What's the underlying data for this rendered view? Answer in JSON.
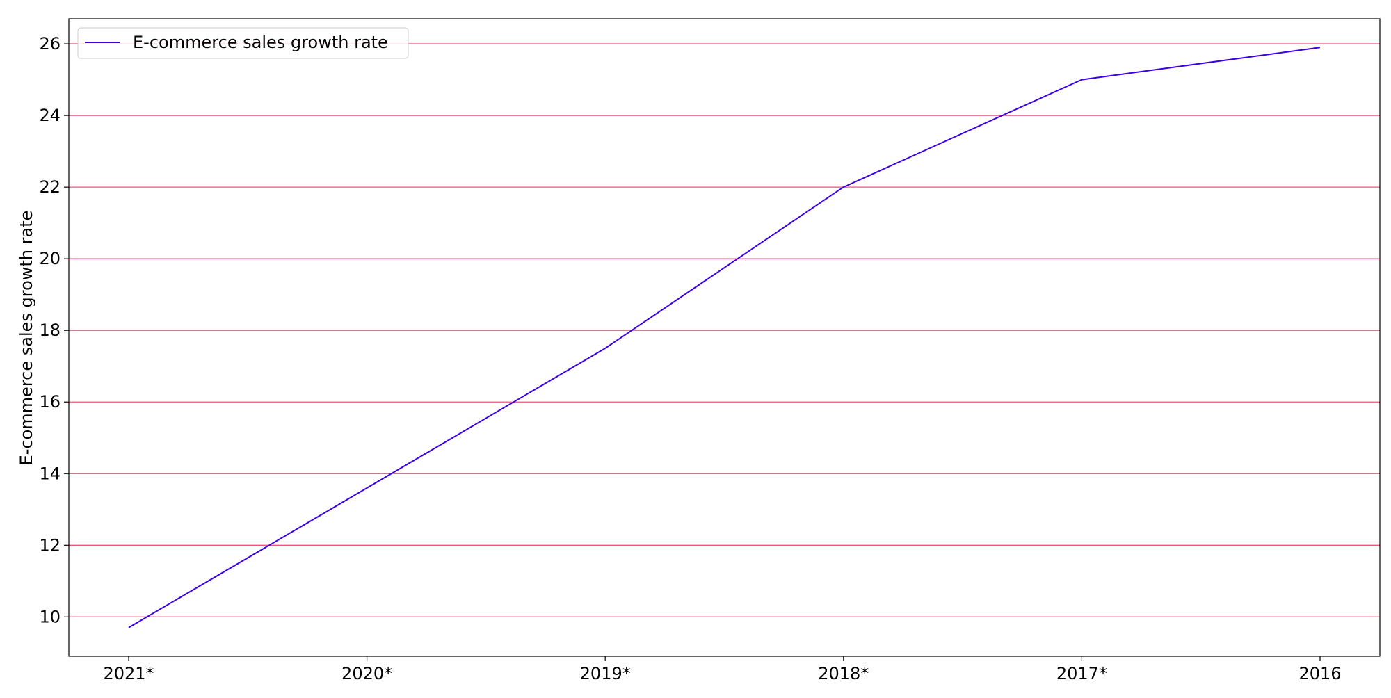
{
  "chart_data": {
    "type": "line",
    "categories": [
      "2021*",
      "2020*",
      "2019*",
      "2018*",
      "2017*",
      "2016"
    ],
    "series": [
      {
        "name": "E-commerce sales growth rate",
        "values": [
          9.7,
          13.6,
          17.5,
          22.0,
          25.0,
          25.9
        ],
        "color": "#3b00e6"
      }
    ],
    "xlabel": "",
    "ylabel": "E-commerce sales growth rate",
    "ylim": [
      8.9,
      26.7
    ],
    "yticks": [
      10,
      12,
      14,
      16,
      18,
      20,
      22,
      24,
      26
    ],
    "grid": {
      "axis": "y",
      "color": "#f0527d"
    },
    "legend": {
      "position": "top-left"
    }
  }
}
